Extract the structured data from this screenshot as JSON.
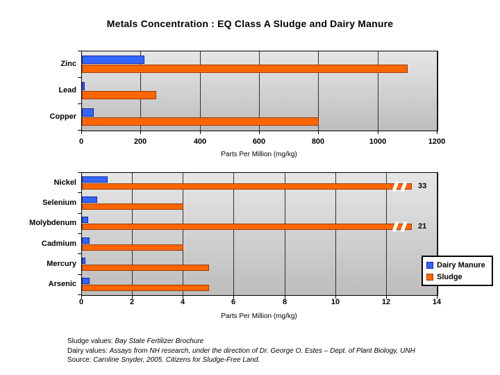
{
  "title": "Metals Concentration : EQ Class A Sludge and Dairy Manure",
  "chart_data": [
    {
      "type": "bar",
      "orientation": "horizontal",
      "title": "",
      "categories": [
        "Zinc",
        "Lead",
        "Copper"
      ],
      "series": [
        {
          "name": "Dairy Manure",
          "color": "#3366FF",
          "border_color": "#16259E",
          "values": [
            210,
            10,
            40
          ]
        },
        {
          "name": "Sludge",
          "color": "#FF6600",
          "border_color": "#9C3A00",
          "values": [
            1100,
            250,
            800
          ]
        }
      ],
      "xlabel": "Parts Per Million (mg/kg)",
      "xlim": [
        0,
        1200
      ],
      "xticks": [
        0,
        200,
        400,
        600,
        800,
        1000,
        1200
      ],
      "grid": true,
      "legend_position": "none",
      "plot_bg": {
        "top": "#E6E6E6",
        "bottom": "#BDBDBD"
      }
    },
    {
      "type": "bar",
      "orientation": "horizontal",
      "title": "",
      "categories": [
        "Nickel",
        "Selenium",
        "Molybdenum",
        "Cadmium",
        "Mercury",
        "Arsenic"
      ],
      "series": [
        {
          "name": "Dairy Manure",
          "color": "#3366FF",
          "border_color": "#16259E",
          "values": [
            1.0,
            0.6,
            0.25,
            0.3,
            0.15,
            0.3
          ]
        },
        {
          "name": "Sludge",
          "color": "#FF6600",
          "border_color": "#9C3A00",
          "values": [
            33,
            4,
            21,
            4,
            5,
            5
          ]
        }
      ],
      "xlabel": "Parts Per Million (mg/kg)",
      "xlim": [
        0,
        14
      ],
      "xticks": [
        0,
        2,
        4,
        6,
        8,
        10,
        12,
        14
      ],
      "grid": true,
      "legend_position": "bottom-right",
      "legend_entries": [
        "Dairy Manure",
        "Sludge"
      ],
      "axis_breaks": [
        {
          "series": "Sludge",
          "category": "Nickel",
          "actual_value": 33,
          "drawn_to": 13.0,
          "label": "33"
        },
        {
          "series": "Sludge",
          "category": "Molybdenum",
          "actual_value": 21,
          "drawn_to": 13.0,
          "label": "21"
        }
      ],
      "plot_bg": {
        "top": "#E6E6E6",
        "bottom": "#BDBDBD"
      }
    }
  ],
  "footnotes": [
    [
      {
        "text": "Sludge values:  ",
        "italic": false
      },
      {
        "text": "Bay State Fertilizer Brochure",
        "italic": true
      }
    ],
    [
      {
        "text": "Dairy values:    ",
        "italic": false
      },
      {
        "text": "Assays from NH research, under the direction of Dr. George O. Estes – Dept. of Plant Biology, UNH",
        "italic": true
      }
    ],
    [
      {
        "text": "Source: ",
        "italic": false
      },
      {
        "text": "Caroline Snyder, 2005. Citizens for Sludge-Free Land.",
        "italic": true
      }
    ]
  ]
}
